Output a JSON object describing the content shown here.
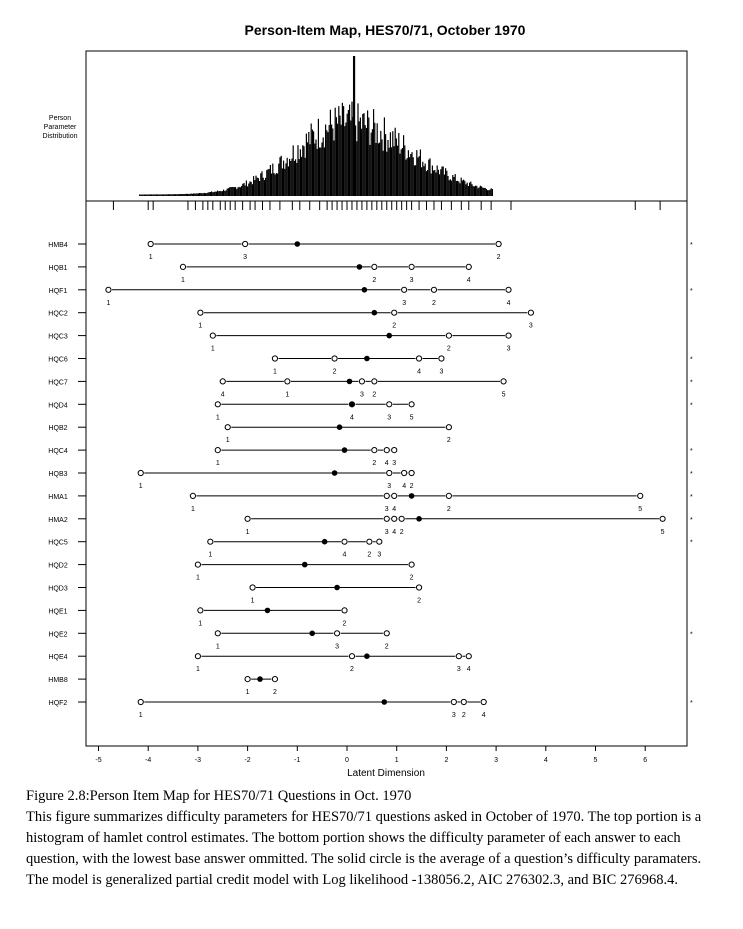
{
  "chart_data": {
    "type": "person-item-map",
    "title": "Person-Item Map, HES70/71, October 1970",
    "histogram_label": [
      "Person",
      "Parameter",
      "Distribution"
    ],
    "xlabel": "Latent Dimension",
    "xlim": [
      -5.0,
      6.8
    ],
    "x_ticks": [
      -5,
      -4,
      -3,
      -2,
      -1,
      0,
      1,
      2,
      3,
      4,
      5,
      6
    ],
    "items": [
      {
        "name": "HMB4",
        "mean": -1.0,
        "thresholds": [
          {
            "x": -3.95,
            "label": "1"
          },
          {
            "x": -2.05,
            "label": "3"
          },
          {
            "x": 3.05,
            "label": "2"
          }
        ],
        "star": true
      },
      {
        "name": "HQB1",
        "mean": 0.25,
        "thresholds": [
          {
            "x": -3.3,
            "label": "1"
          },
          {
            "x": 0.55,
            "label": "2"
          },
          {
            "x": 1.3,
            "label": "3"
          },
          {
            "x": 2.45,
            "label": "4"
          }
        ],
        "star": false
      },
      {
        "name": "HQF1",
        "mean": 0.35,
        "thresholds": [
          {
            "x": -4.8,
            "label": "1"
          },
          {
            "x": 1.15,
            "label": "3"
          },
          {
            "x": 1.75,
            "label": "2"
          },
          {
            "x": 3.25,
            "label": "4"
          }
        ],
        "star": true
      },
      {
        "name": "HQC2",
        "mean": 0.55,
        "thresholds": [
          {
            "x": -2.95,
            "label": "1"
          },
          {
            "x": 0.95,
            "label": "2"
          },
          {
            "x": 3.7,
            "label": "3"
          }
        ],
        "star": false
      },
      {
        "name": "HQC3",
        "mean": 0.85,
        "thresholds": [
          {
            "x": -2.7,
            "label": "1"
          },
          {
            "x": 2.05,
            "label": "2"
          },
          {
            "x": 3.25,
            "label": "3"
          }
        ],
        "star": false
      },
      {
        "name": "HQC6",
        "mean": 0.4,
        "thresholds": [
          {
            "x": -1.45,
            "label": "1"
          },
          {
            "x": -0.25,
            "label": "2"
          },
          {
            "x": 1.45,
            "label": "4"
          },
          {
            "x": 1.9,
            "label": "3"
          }
        ],
        "star": true
      },
      {
        "name": "HQC7",
        "mean": 0.05,
        "thresholds": [
          {
            "x": -2.5,
            "label": "4"
          },
          {
            "x": -1.2,
            "label": "1"
          },
          {
            "x": 0.3,
            "label": "3"
          },
          {
            "x": 0.55,
            "label": "2"
          },
          {
            "x": 3.15,
            "label": "5"
          }
        ],
        "star": true
      },
      {
        "name": "HQD4",
        "mean": 0.1,
        "thresholds": [
          {
            "x": -2.6,
            "label": "1"
          },
          {
            "x": 0.1,
            "label": "4"
          },
          {
            "x": 0.85,
            "label": "3"
          },
          {
            "x": 1.3,
            "label": "5"
          }
        ],
        "star": true
      },
      {
        "name": "HQB2",
        "mean": -0.15,
        "thresholds": [
          {
            "x": -2.4,
            "label": "1"
          },
          {
            "x": 2.05,
            "label": "2"
          }
        ],
        "star": false
      },
      {
        "name": "HQC4",
        "mean": -0.05,
        "thresholds": [
          {
            "x": -2.6,
            "label": "1"
          },
          {
            "x": 0.55,
            "label": "2"
          },
          {
            "x": 0.8,
            "label": "4"
          },
          {
            "x": 0.95,
            "label": "3"
          }
        ],
        "star": true
      },
      {
        "name": "HQB3",
        "mean": -0.25,
        "thresholds": [
          {
            "x": -4.15,
            "label": "1"
          },
          {
            "x": 0.85,
            "label": "3"
          },
          {
            "x": 1.15,
            "label": "4"
          },
          {
            "x": 1.3,
            "label": "2"
          }
        ],
        "star": true
      },
      {
        "name": "HMA1",
        "mean": 1.3,
        "thresholds": [
          {
            "x": -3.1,
            "label": "1"
          },
          {
            "x": 0.8,
            "label": "3"
          },
          {
            "x": 0.95,
            "label": "4"
          },
          {
            "x": 2.05,
            "label": "2"
          },
          {
            "x": 5.9,
            "label": "5"
          }
        ],
        "star": true
      },
      {
        "name": "HMA2",
        "mean": 1.45,
        "thresholds": [
          {
            "x": -2.0,
            "label": "1"
          },
          {
            "x": 0.8,
            "label": "3"
          },
          {
            "x": 0.95,
            "label": "4"
          },
          {
            "x": 1.1,
            "label": "2"
          },
          {
            "x": 6.35,
            "label": "5"
          }
        ],
        "star": true
      },
      {
        "name": "HQC5",
        "mean": -0.45,
        "thresholds": [
          {
            "x": -2.75,
            "label": "1"
          },
          {
            "x": -0.05,
            "label": "4"
          },
          {
            "x": 0.45,
            "label": "2"
          },
          {
            "x": 0.65,
            "label": "3"
          }
        ],
        "star": true
      },
      {
        "name": "HQD2",
        "mean": -0.85,
        "thresholds": [
          {
            "x": -3.0,
            "label": "1"
          },
          {
            "x": 1.3,
            "label": "2"
          }
        ],
        "star": false
      },
      {
        "name": "HQD3",
        "mean": -0.2,
        "thresholds": [
          {
            "x": -1.9,
            "label": "1"
          },
          {
            "x": 1.45,
            "label": "2"
          }
        ],
        "star": false
      },
      {
        "name": "HQE1",
        "mean": -1.6,
        "thresholds": [
          {
            "x": -2.95,
            "label": "1"
          },
          {
            "x": -0.05,
            "label": "2"
          }
        ],
        "star": false
      },
      {
        "name": "HQE2",
        "mean": -0.7,
        "thresholds": [
          {
            "x": -2.6,
            "label": "1"
          },
          {
            "x": -0.2,
            "label": "3"
          },
          {
            "x": 0.8,
            "label": "2"
          }
        ],
        "star": true
      },
      {
        "name": "HQE4",
        "mean": 0.4,
        "thresholds": [
          {
            "x": -3.0,
            "label": "1"
          },
          {
            "x": 0.1,
            "label": "2"
          },
          {
            "x": 2.25,
            "label": "3"
          },
          {
            "x": 2.45,
            "label": "4"
          }
        ],
        "star": false
      },
      {
        "name": "HMB8",
        "mean": -1.75,
        "thresholds": [
          {
            "x": -2.0,
            "label": "1"
          },
          {
            "x": -1.45,
            "label": "2"
          }
        ],
        "star": false
      },
      {
        "name": "HQF2",
        "mean": 0.75,
        "thresholds": [
          {
            "x": -4.15,
            "label": "1"
          },
          {
            "x": 2.15,
            "label": "3"
          },
          {
            "x": 2.35,
            "label": "2"
          },
          {
            "x": 2.75,
            "label": "4"
          }
        ],
        "star": true
      }
    ]
  },
  "caption": {
    "heading": "Figure 2.8:Person Item Map for HES70/71 Questions in Oct. 1970",
    "body": "This figure summarizes difficulty parameters for HES70/71 questions asked in October of 1970. The top portion is a histogram of hamlet control estimates. The bottom portion shows the difficulty parameter of each answer to each question, with the lowest base answer ommitted. The solid circle is the average of a question’s difficulty paramaters. The model is generalized partial credit model with Log likelihood -138056.2, AIC 276302.3, and BIC 276968.4."
  }
}
